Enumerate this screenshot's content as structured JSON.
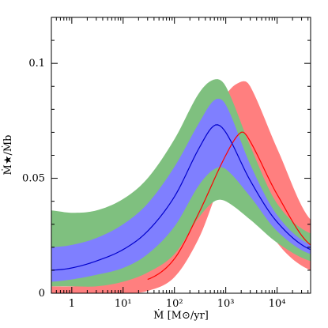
{
  "chart_data": {
    "type": "area",
    "xlabel": "Ṁ [M⊙/yr]",
    "ylabel": "Ṁ★/Ṁb",
    "x_scale": "log",
    "xlim": [
      0.4,
      45000
    ],
    "ylim": [
      0,
      0.12
    ],
    "x_ticks": [
      {
        "value": 1,
        "label": "1"
      },
      {
        "value": 10,
        "label": "10¹"
      },
      {
        "value": 100,
        "label": "10²"
      },
      {
        "value": 1000,
        "label": "10³"
      },
      {
        "value": 10000,
        "label": "10⁴"
      }
    ],
    "y_ticks": [
      {
        "value": 0,
        "label": "0"
      },
      {
        "value": 0.05,
        "label": "0.05"
      },
      {
        "value": 0.1,
        "label": "0.1"
      }
    ],
    "grid": false,
    "legend": "none",
    "series": [
      {
        "color": "#ff7f7f",
        "kind": "band",
        "x": [
          0.4,
          1,
          3,
          10,
          30,
          100,
          300,
          1000,
          2000,
          3000,
          10000,
          45000
        ],
        "lower": [
          0.0,
          0.0,
          0.0,
          0.0,
          0.001,
          0.007,
          0.024,
          0.052,
          0.05,
          0.044,
          0.022,
          0.01
        ],
        "upper": [
          0.003,
          0.003,
          0.004,
          0.007,
          0.014,
          0.032,
          0.06,
          0.086,
          0.092,
          0.09,
          0.063,
          0.032
        ]
      },
      {
        "color": "#7fc07f",
        "kind": "band",
        "x": [
          0.4,
          1,
          3,
          10,
          30,
          100,
          300,
          600,
          1000,
          3000,
          10000,
          45000
        ],
        "lower": [
          0.003,
          0.003,
          0.003,
          0.005,
          0.009,
          0.017,
          0.033,
          0.04,
          0.04,
          0.032,
          0.022,
          0.014
        ],
        "upper": [
          0.036,
          0.035,
          0.036,
          0.041,
          0.05,
          0.067,
          0.087,
          0.093,
          0.09,
          0.064,
          0.039,
          0.026
        ]
      },
      {
        "color": "#7f7fff",
        "kind": "band",
        "x": [
          0.4,
          1,
          3,
          10,
          30,
          100,
          300,
          600,
          1000,
          3000,
          10000,
          45000
        ],
        "lower": [
          0.005,
          0.006,
          0.008,
          0.011,
          0.017,
          0.029,
          0.047,
          0.054,
          0.054,
          0.042,
          0.027,
          0.017
        ],
        "upper": [
          0.02,
          0.021,
          0.024,
          0.03,
          0.039,
          0.055,
          0.074,
          0.084,
          0.082,
          0.056,
          0.034,
          0.021
        ]
      },
      {
        "color": "#ff0000",
        "kind": "line",
        "x": [
          30,
          100,
          300,
          1000,
          2000,
          3000,
          10000,
          45000
        ],
        "y": [
          0.006,
          0.015,
          0.035,
          0.06,
          0.07,
          0.066,
          0.043,
          0.021
        ]
      },
      {
        "color": "#0000cc",
        "kind": "line",
        "x": [
          0.4,
          1,
          3,
          10,
          30,
          100,
          300,
          600,
          1000,
          3000,
          10000,
          45000
        ],
        "y": [
          0.01,
          0.011,
          0.014,
          0.019,
          0.027,
          0.042,
          0.063,
          0.073,
          0.07,
          0.049,
          0.031,
          0.019
        ]
      }
    ]
  }
}
